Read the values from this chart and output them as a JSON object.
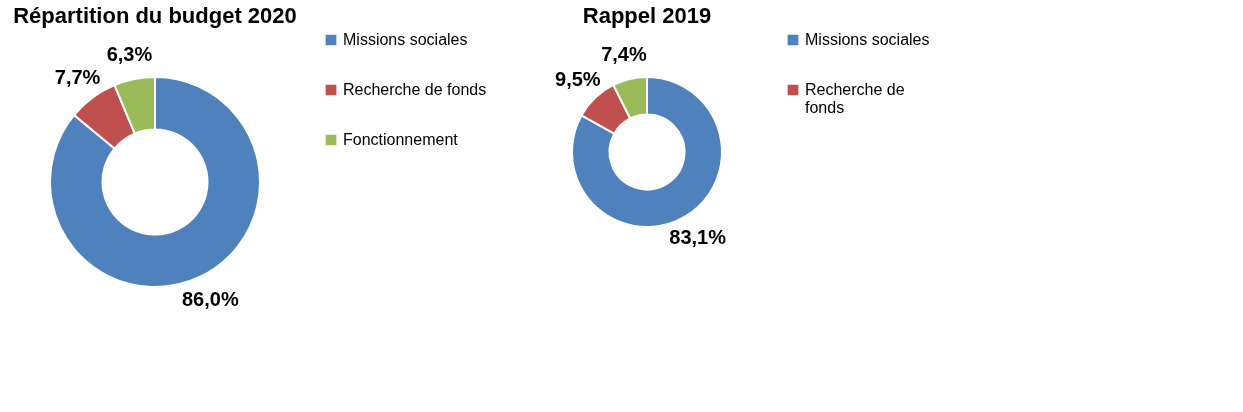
{
  "chart_data": [
    {
      "type": "donut",
      "title": "Répartition du budget 2020",
      "categories": [
        "Missions sociales",
        "Recherche de fonds",
        "Fonctionnement"
      ],
      "values": [
        86.0,
        7.7,
        6.3
      ],
      "colors": [
        "#4f81bd",
        "#c0504d",
        "#9bbb59"
      ],
      "value_labels": [
        "86,0%",
        "7,7%",
        "6,3%"
      ],
      "legend": "right"
    },
    {
      "type": "donut",
      "title": "Rappel 2019",
      "categories": [
        "Missions sociales",
        "Recherche de\nfonds",
        null
      ],
      "values": [
        83.1,
        9.5,
        7.4
      ],
      "colors": [
        "#4f81bd",
        "#c0504d",
        "#9bbb59"
      ],
      "value_labels": [
        "83,1%",
        "9,5%",
        "7,4%"
      ],
      "legend": "right"
    }
  ]
}
